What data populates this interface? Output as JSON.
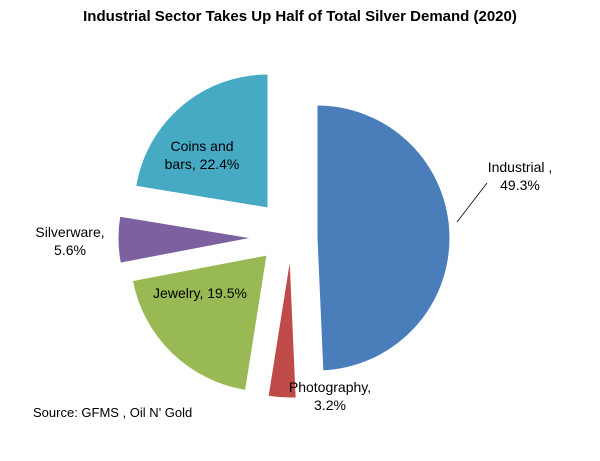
{
  "chart_data": {
    "type": "pie",
    "title": "Industrial Sector Takes Up Half of Total Silver Demand (2020)",
    "unit": "%",
    "exploded": true,
    "slices": [
      {
        "key": "industrial",
        "name": "Industrial ,",
        "value": 49.3,
        "value_label": "49.3%",
        "color": "#4a7ebb"
      },
      {
        "key": "photography",
        "name": "Photography,",
        "value": 3.2,
        "value_label": "3.2%",
        "color": "#be4b48"
      },
      {
        "key": "jewelry",
        "name": "Jewelry,",
        "value": 19.5,
        "value_label": "19.5%",
        "color": "#98b954"
      },
      {
        "key": "silverware",
        "name": "Silverware,",
        "value": 5.6,
        "value_label": "5.6%",
        "color": "#7d60a0"
      },
      {
        "key": "coins",
        "name": "Coins and bars,",
        "value": 22.4,
        "value_label": "22.4%",
        "color": "#46aac5"
      }
    ]
  },
  "source": "Source: GFMS , Oil N' Gold"
}
